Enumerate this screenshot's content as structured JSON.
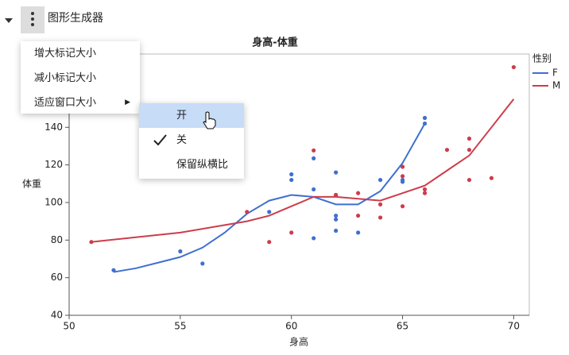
{
  "header": {
    "title": "图形生成器"
  },
  "menu": {
    "items": [
      "增大标记大小",
      "减小标记大小",
      "适应窗口大小"
    ]
  },
  "submenu": {
    "items": [
      "开",
      "关",
      "保留纵横比"
    ]
  },
  "chart_data": {
    "type": "scatter",
    "title": "身高-体重",
    "x_label": "身高",
    "y_label": "体重",
    "legend_title": "性别",
    "xlim": [
      50,
      70.7
    ],
    "xticks": [
      50,
      55,
      60,
      65,
      70
    ],
    "ylim": [
      40,
      179
    ],
    "yticks": [
      40,
      60,
      80,
      100,
      120,
      140
    ],
    "series": [
      {
        "name": "F",
        "color": "#3f6fd0",
        "x": [
          52,
          55,
          56,
          59,
          60,
          60,
          61,
          61,
          61,
          62,
          62,
          62,
          62,
          62,
          63,
          64,
          65,
          65,
          66,
          66
        ],
        "values": [
          64,
          74,
          67.5,
          95,
          115,
          112,
          123.5,
          107,
          81,
          116,
          104,
          93,
          91,
          85,
          84,
          112,
          112,
          111,
          142,
          145
        ],
        "fit_x": [
          52,
          53,
          54,
          55,
          56,
          57,
          58,
          59,
          60,
          61,
          62,
          63,
          64,
          65,
          66
        ],
        "fit_values": [
          63,
          65,
          68,
          71,
          76,
          84,
          94,
          101,
          104,
          103,
          99,
          99,
          106,
          121,
          142
        ]
      },
      {
        "name": "M",
        "color": "#cc3d4b",
        "x": [
          51,
          58,
          59,
          60,
          61,
          62,
          63,
          63,
          64,
          64,
          65,
          65,
          65,
          66,
          66,
          67,
          68,
          68,
          68,
          69,
          70
        ],
        "values": [
          79,
          95,
          79,
          84,
          127.7,
          104,
          105,
          93,
          99,
          92,
          119,
          114,
          98,
          107,
          105,
          128,
          134,
          128,
          112,
          113,
          172
        ],
        "fit_x": [
          51,
          53,
          55,
          57,
          58,
          59,
          60,
          61,
          62,
          63,
          64,
          65,
          66,
          67,
          68,
          69,
          70
        ],
        "fit_values": [
          79,
          81.5,
          84,
          88,
          90,
          93,
          98,
          103,
          103,
          102,
          101,
          105,
          109,
          117,
          125,
          140,
          155
        ]
      }
    ]
  }
}
